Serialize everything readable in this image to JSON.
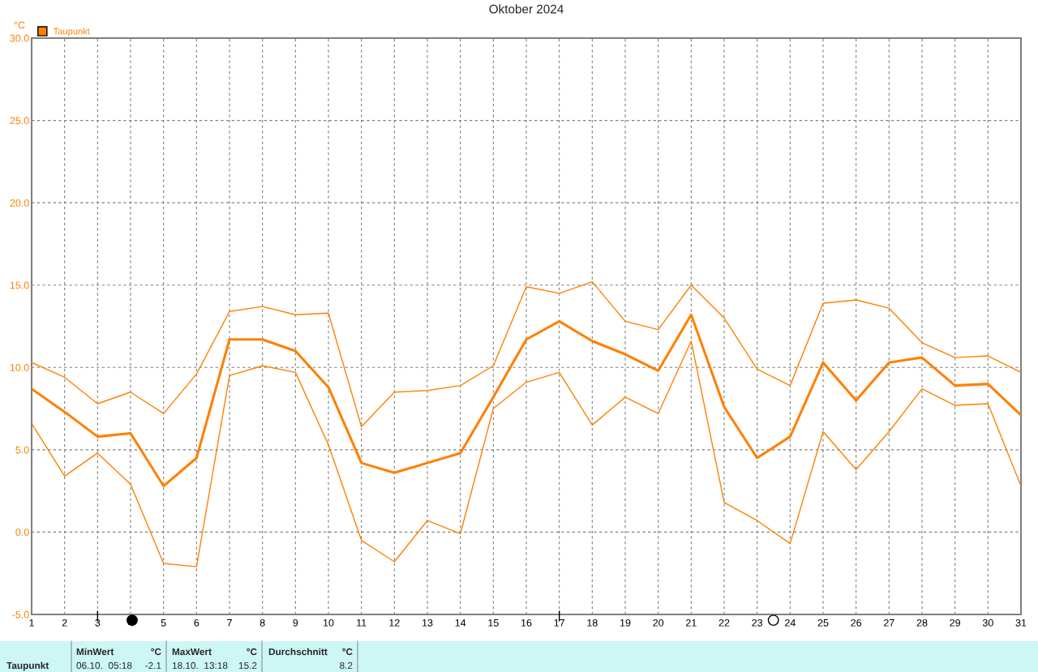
{
  "chart_data": {
    "type": "line",
    "title": "Oktober 2024",
    "ylabel": "°C",
    "x": [
      1,
      2,
      3,
      4,
      5,
      6,
      7,
      8,
      9,
      10,
      11,
      12,
      13,
      14,
      15,
      16,
      17,
      18,
      19,
      20,
      21,
      22,
      23,
      24,
      25,
      26,
      27,
      28,
      29,
      30,
      31
    ],
    "series": [
      {
        "name": "Taupunkt",
        "color": "#ff8000",
        "values": [
          8.7,
          7.3,
          5.8,
          6.0,
          2.8,
          4.5,
          11.7,
          11.7,
          11.0,
          8.8,
          4.2,
          3.6,
          4.2,
          4.8,
          8.2,
          11.7,
          12.8,
          11.6,
          10.8,
          9.8,
          13.2,
          7.6,
          4.5,
          5.8,
          10.3,
          8.0,
          10.3,
          10.6,
          8.9,
          9.0,
          7.1
        ]
      },
      {
        "color": "#ff8000",
        "values": [
          10.3,
          9.4,
          7.8,
          8.5,
          7.2,
          9.6,
          13.4,
          13.7,
          13.2,
          13.3,
          6.4,
          8.5,
          8.6,
          8.9,
          10.1,
          14.9,
          14.5,
          15.2,
          12.8,
          12.3,
          15.0,
          13.0,
          9.9,
          8.9,
          13.9,
          14.1,
          13.6,
          11.5,
          10.6,
          10.7,
          9.7
        ]
      },
      {
        "color": "#ff8000",
        "values": [
          6.6,
          3.4,
          4.8,
          2.9,
          -1.9,
          -2.1,
          9.5,
          10.1,
          9.7,
          5.3,
          -0.5,
          -1.8,
          0.7,
          -0.1,
          7.5,
          9.1,
          9.7,
          6.5,
          8.2,
          7.2,
          11.6,
          1.8,
          0.7,
          -0.7,
          6.1,
          3.8,
          6.1,
          8.7,
          7.7,
          7.8,
          2.8
        ]
      }
    ],
    "xlim": [
      1,
      31
    ],
    "xticks": [
      1,
      2,
      3,
      4,
      5,
      6,
      7,
      8,
      9,
      10,
      11,
      12,
      13,
      14,
      15,
      16,
      17,
      18,
      19,
      20,
      21,
      22,
      23,
      24,
      25,
      26,
      27,
      28,
      29,
      30,
      31
    ],
    "ylim": [
      -5,
      30
    ],
    "yticks": [
      {
        "value": -5,
        "label": "-5.0"
      },
      {
        "value": 0,
        "label": "0.0"
      },
      {
        "value": 5,
        "label": "5.0"
      },
      {
        "value": 10,
        "label": "10.0"
      },
      {
        "value": 15,
        "label": "15.0"
      },
      {
        "value": 20,
        "label": "20.0"
      },
      {
        "value": 25,
        "label": "25.0"
      },
      {
        "value": 30,
        "label": "30.0"
      }
    ],
    "grid": true,
    "legend": "top left",
    "line_style": "solid",
    "annotations": [
      "Taupunkt",
      "MinWert",
      "°C",
      "06.10.  05:18",
      "-2.1",
      "MaxWert",
      "°C",
      "18.10.  13:18",
      "15.2",
      "Durchschnitt",
      "°C",
      "8.2"
    ]
  }
}
